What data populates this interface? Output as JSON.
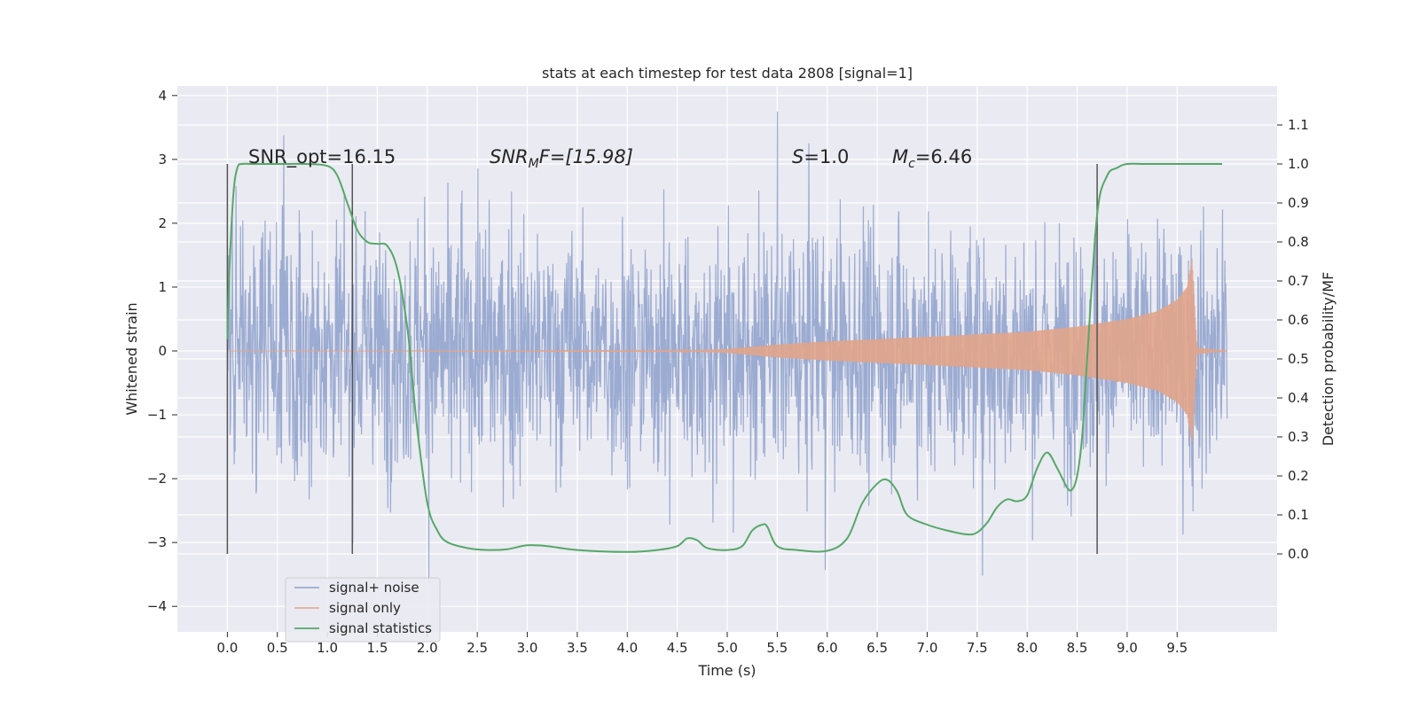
{
  "chart_data": {
    "type": "line",
    "title": "stats at each timestep for test data 2808 [signal=1]",
    "xlabel": "Time (s)",
    "ylabel_left": "Whitened strain",
    "ylabel_right": "Detection probability/MF",
    "xlim": [
      -0.5,
      10.5
    ],
    "ylim_left": [
      -4.4,
      4.15
    ],
    "ylim_right": [
      -0.2,
      1.2
    ],
    "xticks": [
      "0.0",
      "0.5",
      "1.0",
      "1.5",
      "2.0",
      "2.5",
      "3.0",
      "3.5",
      "4.0",
      "4.5",
      "5.0",
      "5.5",
      "6.0",
      "6.5",
      "7.0",
      "7.5",
      "8.0",
      "8.5",
      "9.0",
      "9.5"
    ],
    "yticks_left": [
      "4",
      "3",
      "2",
      "1",
      "0",
      "−1",
      "−2",
      "−3",
      "−4"
    ],
    "yticks_right": [
      "1.1",
      "1.0",
      "0.9",
      "0.8",
      "0.7",
      "0.6",
      "0.5",
      "0.4",
      "0.3",
      "0.2",
      "0.1",
      "0.0"
    ],
    "grid": true,
    "legend_position": "lower-left",
    "annotations": {
      "snr_opt": "SNR_opt=16.15",
      "snr_mf_italic": "SNR",
      "snr_mf_sub": "M",
      "snr_mf_rest": "F=[15.98]",
      "s_italic": "S",
      "s_rest": "=1.0",
      "mc_italic": "M",
      "mc_sub": "c",
      "mc_rest": "=6.46"
    },
    "vertical_markers_x": [
      0.0,
      1.25,
      8.7
    ],
    "series": [
      {
        "name": "signal+ noise",
        "axis": "left",
        "color": "#8da0cb",
        "description_values": "whitened strain, typical amplitude ±1.2, peaks to ±3.7"
      },
      {
        "name": "signal only",
        "axis": "left",
        "color": "#e1a48a",
        "envelope": {
          "x": [
            0.0,
            4.5,
            5.0,
            5.5,
            6.0,
            7.0,
            8.0,
            8.5,
            9.0,
            9.3,
            9.5,
            9.6,
            9.65,
            9.7,
            10.0
          ],
          "amp": [
            0.0,
            0.005,
            0.03,
            0.1,
            0.15,
            0.22,
            0.3,
            0.38,
            0.5,
            0.62,
            0.8,
            1.0,
            1.45,
            0.05,
            0.0
          ]
        }
      },
      {
        "name": "signal statistics",
        "axis": "right",
        "color": "#55a868",
        "x": [
          0.0,
          0.02,
          0.06,
          0.1,
          0.15,
          0.25,
          0.4,
          0.6,
          0.8,
          1.0,
          1.1,
          1.2,
          1.3,
          1.4,
          1.5,
          1.6,
          1.7,
          1.8,
          1.85,
          1.9,
          2.0,
          2.1,
          2.2,
          2.4,
          2.6,
          2.8,
          3.0,
          3.2,
          3.5,
          4.0,
          4.3,
          4.5,
          4.6,
          4.7,
          4.8,
          5.0,
          5.15,
          5.25,
          5.35,
          5.4,
          5.5,
          5.7,
          6.0,
          6.2,
          6.35,
          6.5,
          6.6,
          6.7,
          6.8,
          7.0,
          7.2,
          7.4,
          7.5,
          7.6,
          7.7,
          7.8,
          7.9,
          8.0,
          8.1,
          8.2,
          8.3,
          8.4,
          8.45,
          8.5,
          8.55,
          8.6,
          8.7,
          8.8,
          8.9,
          9.0,
          9.2,
          9.5,
          9.95
        ],
        "values": [
          0.55,
          0.72,
          0.92,
          0.99,
          1.0,
          1.0,
          1.0,
          1.0,
          1.0,
          0.995,
          0.97,
          0.9,
          0.83,
          0.8,
          0.795,
          0.79,
          0.73,
          0.58,
          0.45,
          0.32,
          0.13,
          0.06,
          0.03,
          0.015,
          0.01,
          0.012,
          0.022,
          0.02,
          0.01,
          0.005,
          0.01,
          0.02,
          0.04,
          0.035,
          0.015,
          0.01,
          0.02,
          0.06,
          0.075,
          0.07,
          0.02,
          0.01,
          0.008,
          0.04,
          0.13,
          0.18,
          0.19,
          0.16,
          0.1,
          0.075,
          0.06,
          0.05,
          0.055,
          0.08,
          0.12,
          0.14,
          0.135,
          0.15,
          0.22,
          0.26,
          0.22,
          0.17,
          0.165,
          0.2,
          0.3,
          0.5,
          0.87,
          0.97,
          0.99,
          1.0,
          1.0,
          1.0,
          1.0
        ]
      }
    ]
  }
}
